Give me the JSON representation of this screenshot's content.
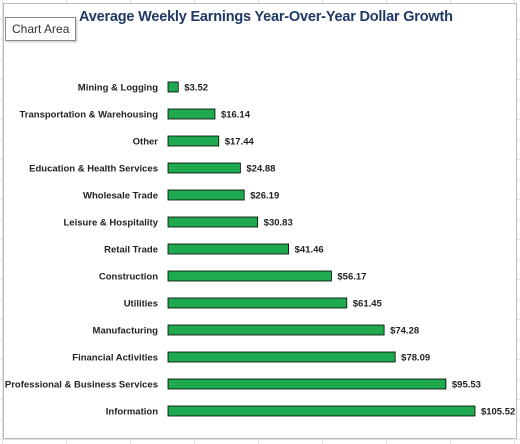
{
  "chart_area_label": "Chart Area",
  "chart_data": {
    "type": "bar",
    "orientation": "horizontal",
    "title": "Average Weekly Earnings Year-Over-Year Dollar Growth",
    "categories": [
      "Mining & Logging",
      "Transportation & Warehousing",
      "Other",
      "Education & Health Services",
      "Wholesale Trade",
      "Leisure & Hospitality",
      "Retail Trade",
      "Construction",
      "Utilities",
      "Manufacturing",
      "Financial Activities",
      "Professional & Business Services",
      "Information"
    ],
    "values": [
      3.52,
      16.14,
      17.44,
      24.88,
      26.19,
      30.83,
      41.46,
      56.17,
      61.45,
      74.28,
      78.09,
      95.53,
      105.52
    ],
    "data_labels": [
      "$3.52",
      "$16.14",
      "$17.44",
      "$24.88",
      "$26.19",
      "$30.83",
      "$41.46",
      "$56.17",
      "$61.45",
      "$74.28",
      "$78.09",
      "$95.53",
      "$105.52"
    ],
    "xlabel": "",
    "ylabel": "",
    "xlim": [
      0,
      110
    ],
    "bar_color": "#1faa4f",
    "bar_edge_color": "#000000",
    "grid": false,
    "legend": "none"
  }
}
